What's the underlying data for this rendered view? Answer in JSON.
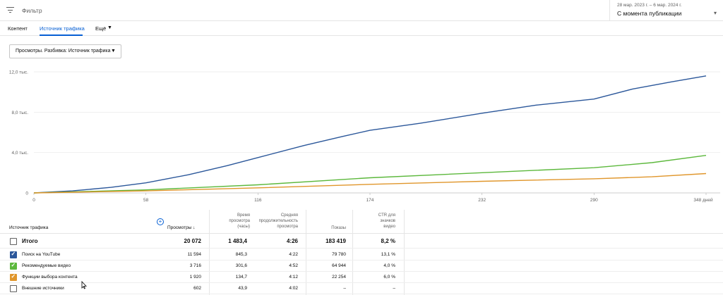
{
  "filter": {
    "label": "Фильтр",
    "icon": "filter-icon"
  },
  "date": {
    "range": "28 мар. 2023 г. – 6 мар. 2024 г.",
    "period": "С момента публикации"
  },
  "tabs": [
    {
      "label": "Контент"
    },
    {
      "label": "Источник трафика"
    },
    {
      "label": "Ещё"
    }
  ],
  "metric_selector": {
    "label": "Просмотры. Разбивка: Источник трафика"
  },
  "chart_data": {
    "type": "line",
    "y_ticks": [
      "12,0 тыс.",
      "8,0 тыс.",
      "4,0 тыс.",
      "0"
    ],
    "ylim": [
      0,
      12000
    ],
    "x_ticks": [
      "0",
      "58",
      "116",
      "174",
      "232",
      "290",
      "348 дней"
    ],
    "xlim": [
      0,
      348
    ],
    "grid": true,
    "series": [
      {
        "color": "#2b579a",
        "x": [
          0,
          20,
          40,
          58,
          80,
          100,
          116,
          140,
          160,
          174,
          200,
          232,
          260,
          290,
          310,
          330,
          348
        ],
        "y": [
          0,
          200,
          550,
          1000,
          1800,
          2700,
          3500,
          4700,
          5600,
          6200,
          6900,
          7900,
          8700,
          9300,
          10300,
          11000,
          11594
        ]
      },
      {
        "color": "#5cb83c",
        "x": [
          0,
          58,
          116,
          174,
          232,
          290,
          320,
          348
        ],
        "y": [
          0,
          300,
          800,
          1500,
          2000,
          2500,
          3000,
          3716
        ]
      },
      {
        "color": "#e0962b",
        "x": [
          0,
          58,
          116,
          174,
          232,
          290,
          320,
          348
        ],
        "y": [
          0,
          200,
          500,
          850,
          1150,
          1400,
          1600,
          1920
        ]
      }
    ]
  },
  "table": {
    "header": {
      "source": "Источник трафика",
      "views": "Просмотры ↓",
      "watch_time": [
        "Время",
        "просмотра",
        "(часы)"
      ],
      "avg_duration": [
        "Средняя",
        "продолжительность",
        "просмотра"
      ],
      "impressions": "Показы",
      "ctr": [
        "CTR для",
        "значков",
        "видео"
      ]
    },
    "total": {
      "label": "Итого",
      "views": "20 072",
      "watch": "1 483,4",
      "avg": "4:26",
      "impressions": "183 419",
      "ctr": "8,2 %"
    },
    "rows": [
      {
        "label": "Поиск на YouTube",
        "checked": true,
        "color": "#2b579a",
        "views": "11 594",
        "watch": "845,3",
        "avg": "4:22",
        "impressions": "79 780",
        "ctr": "13,1 %"
      },
      {
        "label": "Рекомендуемые видео",
        "checked": true,
        "color": "#5cb83c",
        "views": "3 716",
        "watch": "301,6",
        "avg": "4:52",
        "impressions": "64 944",
        "ctr": "4,0 %"
      },
      {
        "label": "Функции выбора контента",
        "checked": true,
        "color": "#e0962b",
        "views": "1 920",
        "watch": "134,7",
        "avg": "4:12",
        "impressions": "22 254",
        "ctr": "6,0 %"
      },
      {
        "label": "Внешние источники",
        "checked": false,
        "color": "#606060",
        "views": "602",
        "watch": "43,9",
        "avg": "4:02",
        "impressions": "–",
        "ctr": "–"
      }
    ]
  }
}
